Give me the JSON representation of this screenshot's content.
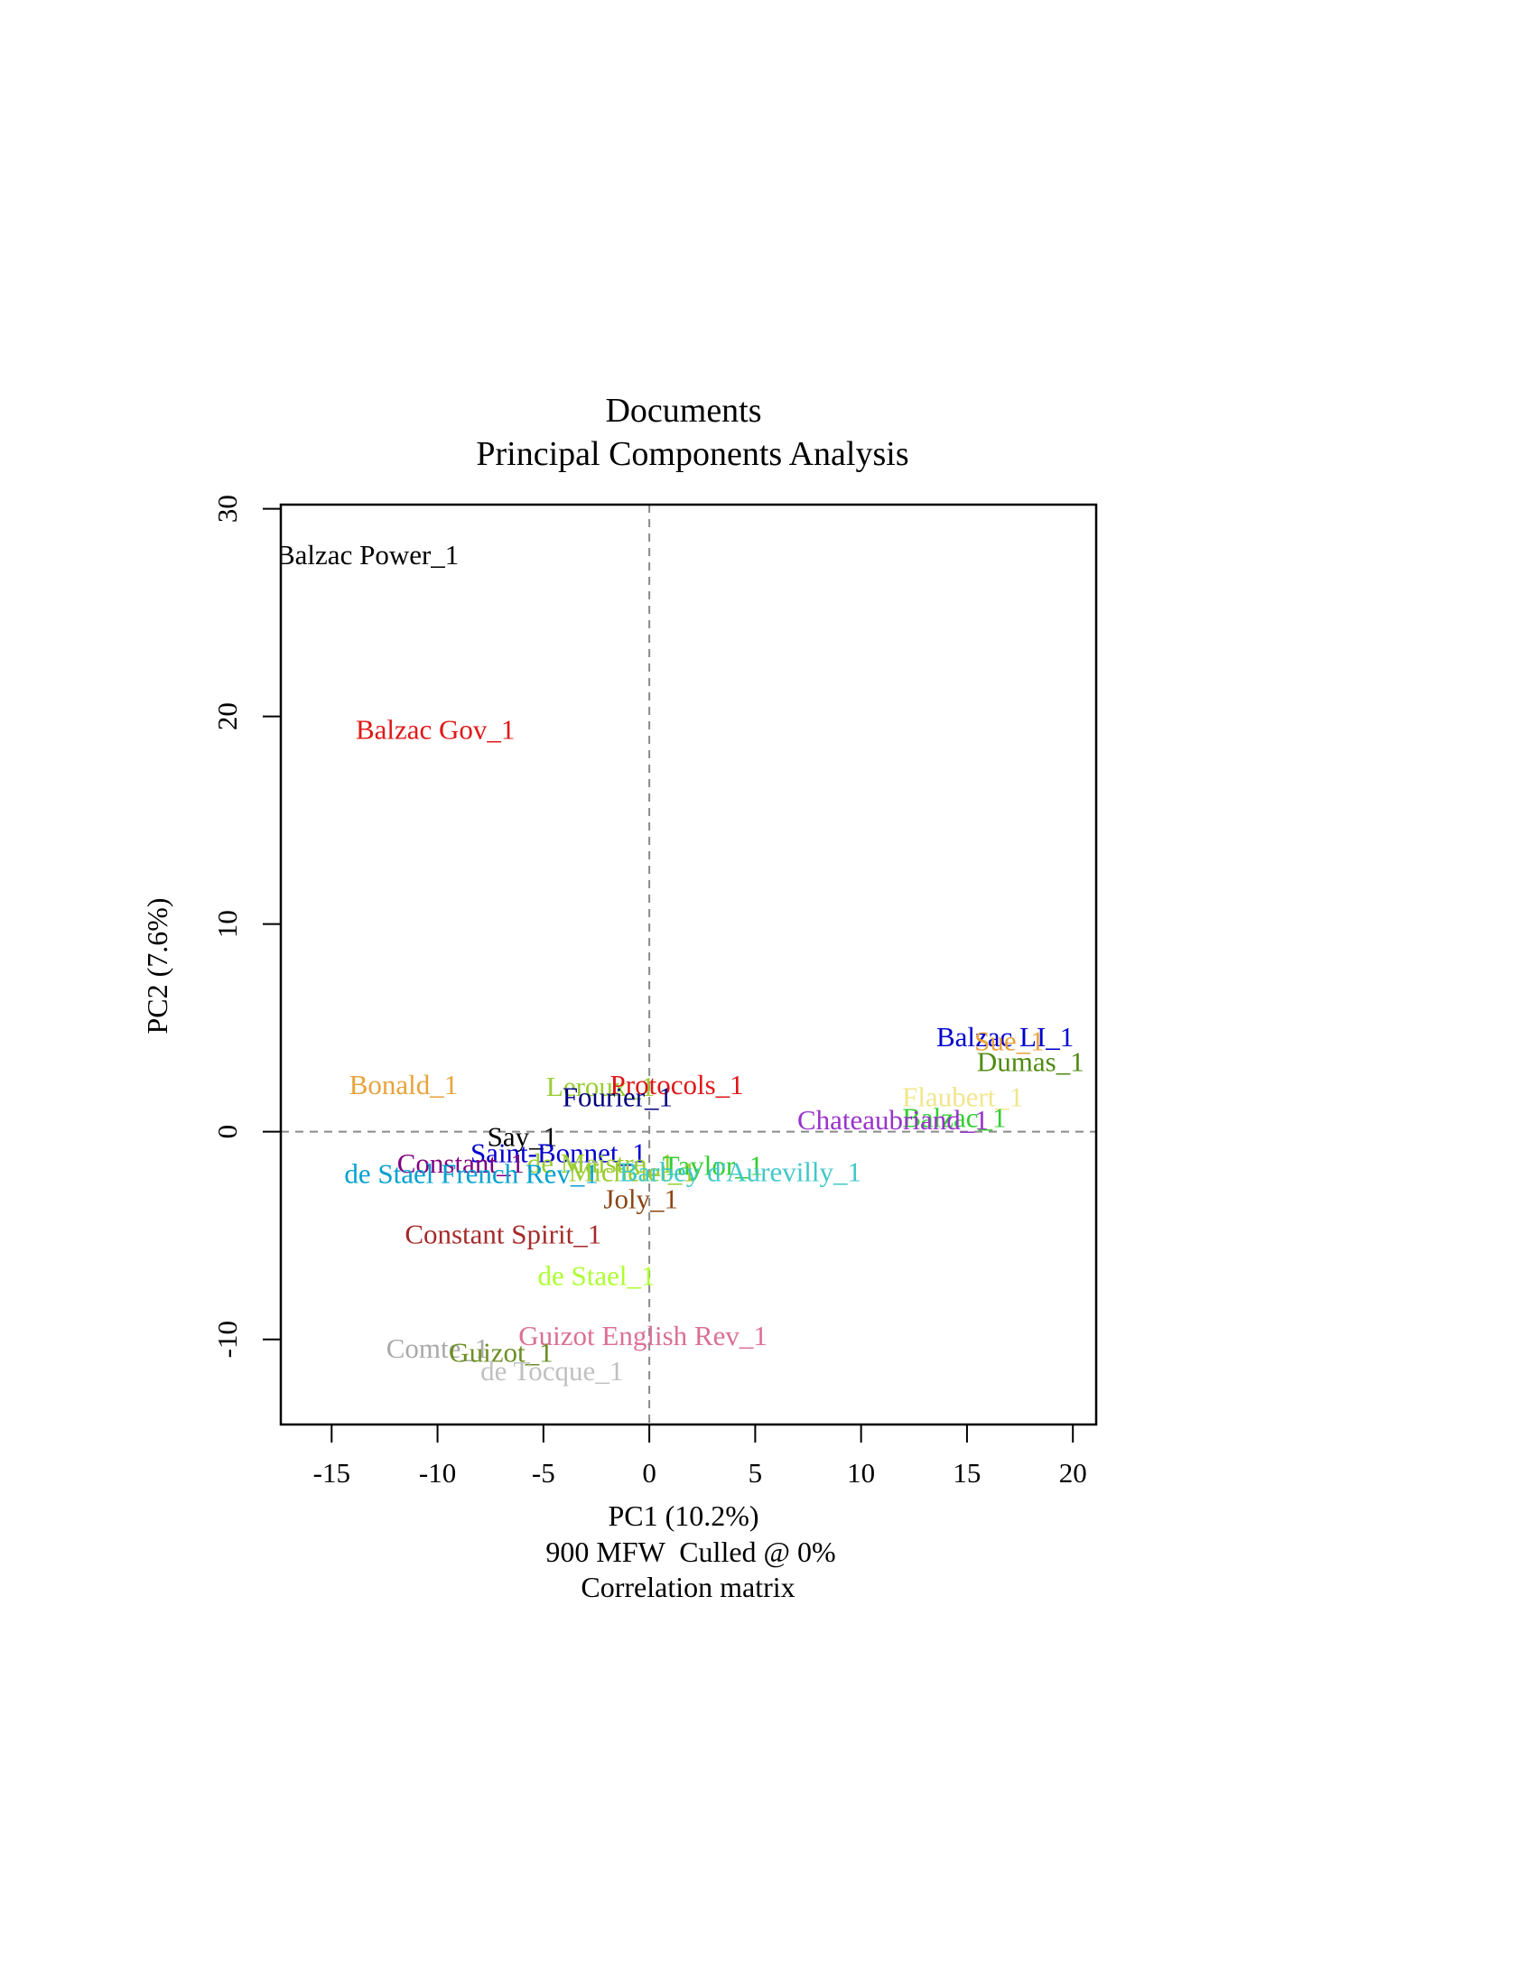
{
  "chart_data": {
    "type": "scatter",
    "title": "Documents",
    "subtitle": "Principal Components Analysis",
    "xlabel": "PC1 (10.2%)",
    "ylabel": "PC2 (7.6%)",
    "footer": [
      "900 MFW  Culled @ 0%",
      "Correlation matrix"
    ],
    "xlim": [
      -17.4,
      21.1
    ],
    "ylim": [
      -14.1,
      30.2
    ],
    "xticks": [
      -15,
      -10,
      -5,
      0,
      5,
      10,
      15,
      20
    ],
    "yticks": [
      -10,
      0,
      10,
      20,
      30
    ],
    "reference_lines": {
      "x": 0,
      "y": 0
    },
    "grid": false,
    "points": [
      {
        "label": "Balzac Power_1",
        "x": -13.3,
        "y": 27.8,
        "color": "#000000"
      },
      {
        "label": "Balzac Gov_1",
        "x": -10.1,
        "y": 19.4,
        "color": "#DF1717"
      },
      {
        "label": "Balzac LI_1",
        "x": 16.8,
        "y": 4.6,
        "color": "#0000CD"
      },
      {
        "label": "Sue_1",
        "x": 17.0,
        "y": 4.4,
        "color": "#E8A33B"
      },
      {
        "label": "Dumas_1",
        "x": 18.0,
        "y": 3.4,
        "color": "#4F8A10"
      },
      {
        "label": "Bonald_1",
        "x": -11.6,
        "y": 2.3,
        "color": "#E8A33B"
      },
      {
        "label": "Leroux_1",
        "x": -2.3,
        "y": 2.2,
        "color": "#9ACD32"
      },
      {
        "label": "Protocols_1",
        "x": 1.3,
        "y": 2.3,
        "color": "#DF1717"
      },
      {
        "label": "Fourier_1",
        "x": -1.5,
        "y": 1.7,
        "color": "#000080"
      },
      {
        "label": "Flaubert_1",
        "x": 14.8,
        "y": 1.7,
        "color": "#F0E68C"
      },
      {
        "label": "Balzac_1",
        "x": 14.4,
        "y": 0.7,
        "color": "#32CD32"
      },
      {
        "label": "Chateaubriand_1",
        "x": 11.5,
        "y": 0.6,
        "color": "#9932CC"
      },
      {
        "label": "Say_1",
        "x": -6.0,
        "y": -0.2,
        "color": "#000000"
      },
      {
        "label": "Saint-Bonnet_1",
        "x": -4.3,
        "y": -1.0,
        "color": "#0000CD"
      },
      {
        "label": "Constant_1",
        "x": -8.9,
        "y": -1.5,
        "color": "#800080"
      },
      {
        "label": "de Maistre_1",
        "x": -2.3,
        "y": -1.5,
        "color": "#9ACD32"
      },
      {
        "label": "Taylor_1",
        "x": 3.0,
        "y": -1.6,
        "color": "#32CD32"
      },
      {
        "label": "de Stael French Rev_1",
        "x": -8.4,
        "y": -2.0,
        "color": "#00A0D0"
      },
      {
        "label": "Michelet_1",
        "x": -0.8,
        "y": -1.9,
        "color": "#9ACD32"
      },
      {
        "label": "Barbey d'Aurevilly_1",
        "x": 4.3,
        "y": -1.9,
        "color": "#40C8C8"
      },
      {
        "label": "Joly_1",
        "x": -0.4,
        "y": -3.2,
        "color": "#8B4513"
      },
      {
        "label": "Constant Spirit_1",
        "x": -6.9,
        "y": -4.9,
        "color": "#A52A2A"
      },
      {
        "label": "de Stael_1",
        "x": -2.5,
        "y": -6.9,
        "color": "#ADFF2F"
      },
      {
        "label": "Guizot English Rev_1",
        "x": -0.3,
        "y": -9.8,
        "color": "#DB7093"
      },
      {
        "label": "Comte_1",
        "x": -10.0,
        "y": -10.4,
        "color": "#A9A9A9"
      },
      {
        "label": "Guizot_1",
        "x": -7.0,
        "y": -10.6,
        "color": "#6B8E23"
      },
      {
        "label": "de Tocque_1",
        "x": -4.6,
        "y": -11.5,
        "color": "#C0C0C0"
      }
    ]
  }
}
